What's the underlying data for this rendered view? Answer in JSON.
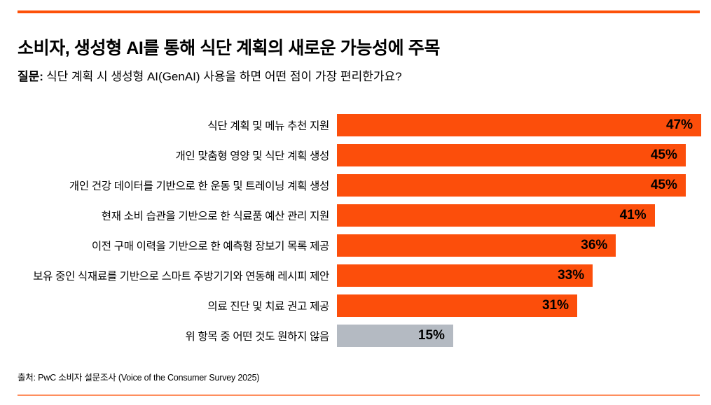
{
  "header": {
    "title": "소비자, 생성형 AI를 통해 식단 계획의 새로운 가능성에 주목"
  },
  "question": {
    "label": "질문:",
    "text": "식단 계획 시 생성형 AI(GenAI) 사용을 하면 어떤 점이 가장 편리한가요?"
  },
  "footer": {
    "source": "출처: PwC 소비자 설문조사 (Voice of the Consumer Survey 2025)"
  },
  "colors": {
    "accent_orange": "#FD5108",
    "bar_orange": "#FC4E0B",
    "bar_gray": "#B4BAC2",
    "text_black": "#000000"
  },
  "chart_data": {
    "type": "bar",
    "orientation": "horizontal",
    "title": "소비자, 생성형 AI를 통해 식단 계획의 새로운 가능성에 주목",
    "subtitle": "질문: 식단 계획 시 생성형 AI(GenAI) 사용을 하면 어떤 점이 가장 편리한가요?",
    "categories": [
      "식단 계획 및 메뉴 추천 지원",
      "개인 맞춤형 영양 및 식단 계획 생성",
      "개인 건강 데이터를 기반으로 한 운동 및 트레이닝 계획 생성",
      "현재 소비 습관을 기반으로 한 식료품 예산 관리 지원",
      "이전 구매 이력을 기반으로 한 예측형 장보기 목록 제공",
      "보유 중인 식재료를 기반으로 스마트 주방기기와 연동해 레시피 제안",
      "의료 진단 및 치료 권고 제공",
      "위 항목 중 어떤 것도 원하지 않음"
    ],
    "values": [
      47,
      45,
      45,
      41,
      36,
      33,
      31,
      15
    ],
    "value_labels": [
      "47%",
      "45%",
      "45%",
      "41%",
      "36%",
      "33%",
      "31%",
      "15%"
    ],
    "max_value": 47,
    "bar_colors": [
      "#FC4E0B",
      "#FC4E0B",
      "#FC4E0B",
      "#FC4E0B",
      "#FC4E0B",
      "#FC4E0B",
      "#FC4E0B",
      "#B4BAC2"
    ],
    "value_label_position": "inside-end",
    "grid": false,
    "legend": false,
    "xlim": [
      0,
      47
    ]
  }
}
